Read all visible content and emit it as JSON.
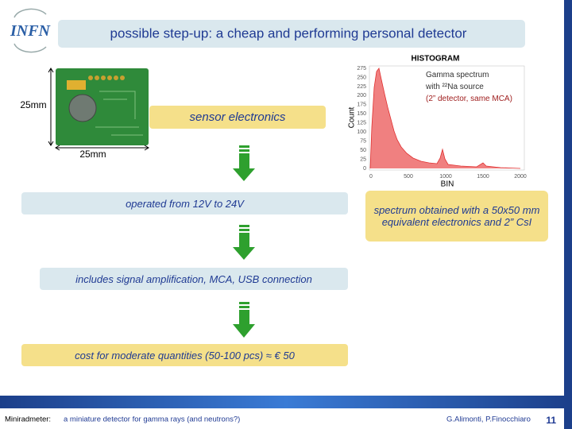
{
  "header": {
    "logo": "INFN",
    "title": "possible step-up: a cheap and performing personal detector"
  },
  "board": {
    "height_label": "25mm",
    "width_label": "25mm",
    "caption": "sensor electronics"
  },
  "histogram": {
    "title": "HISTOGRAM",
    "y_label": "Count",
    "x_label": "BIN",
    "yticks": [
      "275",
      "250",
      "225",
      "200",
      "175",
      "150",
      "125",
      "100",
      "75",
      "50",
      "25",
      "0"
    ],
    "xticks": [
      "0",
      "500",
      "1000",
      "1500",
      "2000"
    ],
    "legend": [
      "Gamma spectrum",
      "with ²²Na source",
      "(2” detector, same MCA)"
    ]
  },
  "steps": [
    "operated from 12V to 24V",
    "includes signal amplification, MCA, USB connection",
    "cost for moderate quantities (50-100 pcs) ≈ € 50"
  ],
  "spectrum_note": "spectrum obtained with a 50x50 mm equivalent electronics and 2” CsI",
  "footer": {
    "project": "Miniradmeter:",
    "subtitle": "a miniature detector for gamma rays (and neutrons?)",
    "authors": "G.Alimonti, P.Finocchiaro",
    "page": "11"
  }
}
